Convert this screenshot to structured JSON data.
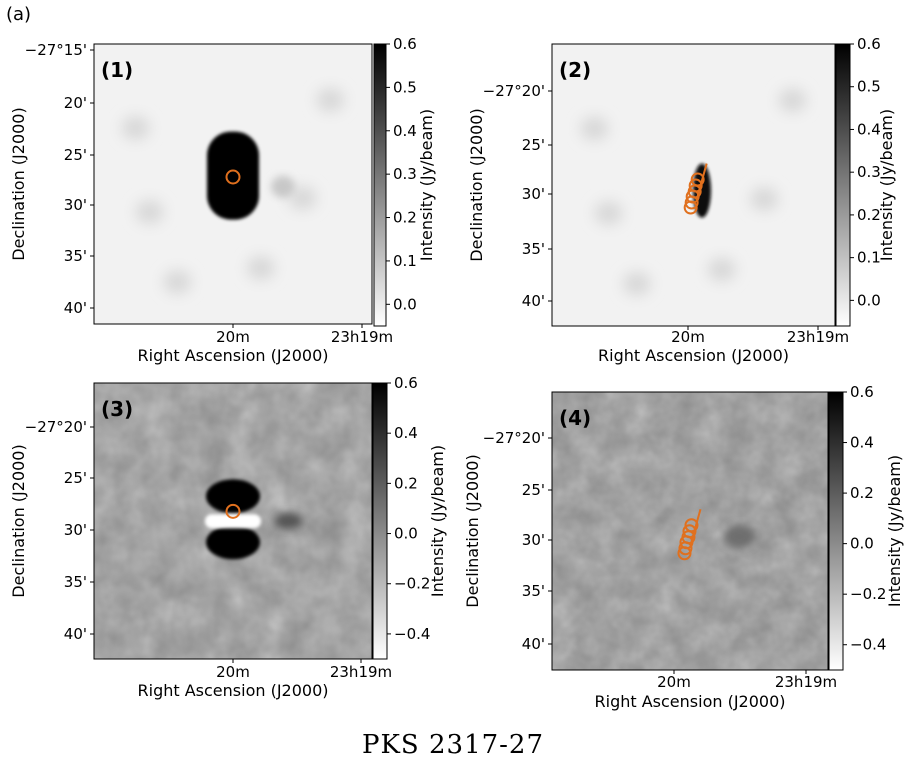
{
  "figure": {
    "label": "(a)",
    "caption": "PKS 2317-27",
    "panels": [
      {
        "id": "(1)",
        "xlabel": "Right Ascension (J2000)",
        "ylabel": "Declination (J2000)",
        "x_ticks": [
          "20m",
          "23h19m"
        ],
        "y_ticks": [
          "−27°15'",
          "20'",
          "25'",
          "30'",
          "35'",
          "40'"
        ],
        "colorbar": {
          "label": "Intensity (Jy/beam)",
          "ticks": [
            "0.6",
            "0.5",
            "0.4",
            "0.3",
            "0.2",
            "0.1",
            "0.0"
          ],
          "range": [
            -0.05,
            0.6
          ],
          "tick_values": [
            0.6,
            0.5,
            0.4,
            0.3,
            0.2,
            0.1,
            0.0
          ]
        },
        "style": "smooth",
        "source_shape": "capsule",
        "markers": 1
      },
      {
        "id": "(2)",
        "xlabel": "Right Ascension (J2000)",
        "ylabel": "Declination (J2000)",
        "x_ticks": [
          "20m",
          "23h19m"
        ],
        "y_ticks": [
          "−27°20'",
          "25'",
          "30'",
          "35'",
          "40'"
        ],
        "colorbar": {
          "label": "Intensity (Jy/beam)",
          "ticks": [
            "0.6",
            "0.5",
            "0.4",
            "0.3",
            "0.2",
            "0.1",
            "0.0"
          ],
          "range": [
            -0.06,
            0.6
          ],
          "tick_values": [
            0.6,
            0.5,
            0.4,
            0.3,
            0.2,
            0.1,
            0.0
          ]
        },
        "style": "smooth",
        "source_shape": "chain",
        "markers": 6
      },
      {
        "id": "(3)",
        "xlabel": "Right Ascension (J2000)",
        "ylabel": "Declination (J2000)",
        "x_ticks": [
          "20m",
          "23h19m"
        ],
        "y_ticks": [
          "−27°20'",
          "25'",
          "30'",
          "35'",
          "40'"
        ],
        "colorbar": {
          "label": "Intensity (Jy/beam)",
          "ticks": [
            "0.6",
            "0.4",
            "0.2",
            "0.0",
            "−0.2",
            "−0.4"
          ],
          "range": [
            -0.5,
            0.6
          ],
          "tick_values": [
            0.6,
            0.4,
            0.2,
            0.0,
            -0.2,
            -0.4
          ]
        },
        "style": "noisy",
        "source_shape": "split",
        "markers": 1
      },
      {
        "id": "(4)",
        "xlabel": "Right Ascension (J2000)",
        "ylabel": "Declination (J2000)",
        "x_ticks": [
          "20m",
          "23h19m"
        ],
        "y_ticks": [
          "−27°20'",
          "25'",
          "30'",
          "35'",
          "40'"
        ],
        "colorbar": {
          "label": "Intensity (Jy/beam)",
          "ticks": [
            "0.6",
            "0.4",
            "0.2",
            "0.0",
            "−0.2",
            "−0.4"
          ],
          "range": [
            -0.5,
            0.6
          ],
          "tick_values": [
            0.6,
            0.4,
            0.2,
            0.0,
            -0.2,
            -0.4
          ]
        },
        "style": "noisy",
        "source_shape": "faint",
        "markers": 6
      }
    ],
    "colors": {
      "marker": "#e0701e",
      "axis": "#000000"
    }
  }
}
